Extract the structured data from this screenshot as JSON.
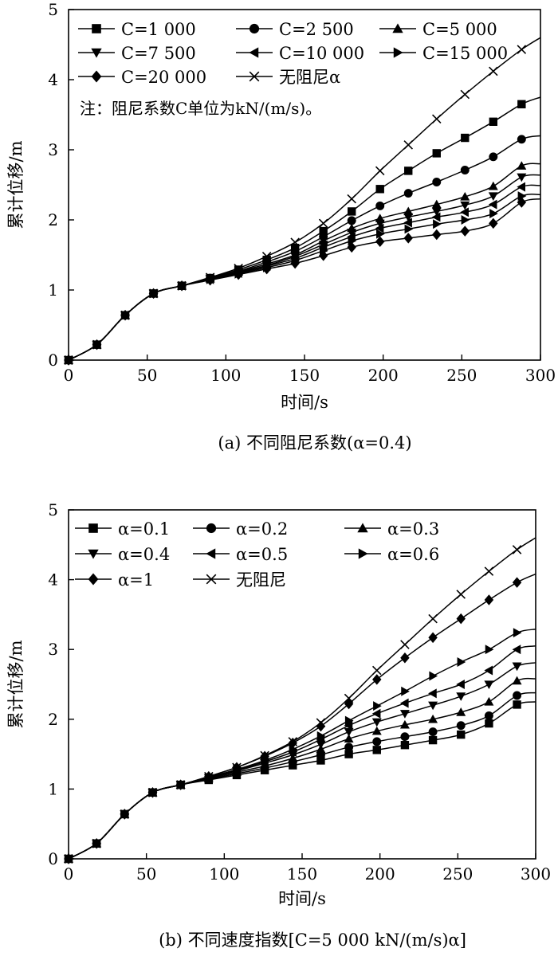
{
  "chart_data": [
    {
      "id": "a",
      "type": "line",
      "caption": "(a) 不同阻尼系数(α=0.4)",
      "xlabel": "时间/s",
      "ylabel": "累计位移/m",
      "xlim": [
        0,
        300
      ],
      "ylim": [
        0,
        5
      ],
      "xticks": [
        "0",
        "50",
        "100",
        "150",
        "200",
        "250",
        "300"
      ],
      "yticks": [
        "0",
        "1",
        "2",
        "3",
        "4",
        "5"
      ],
      "legend_placement": "top-left",
      "note": "注：阻尼系数C单位为kN/(m/s)。",
      "marker_x": [
        0,
        18,
        36,
        54,
        72,
        90,
        108,
        126,
        144,
        162,
        180,
        198,
        216,
        234,
        252,
        270,
        288
      ],
      "series": [
        {
          "name": "C=1 000",
          "marker": "square",
          "values": [
            0,
            0.22,
            0.64,
            0.95,
            1.06,
            1.17,
            1.29,
            1.43,
            1.6,
            1.84,
            2.12,
            2.44,
            2.7,
            2.95,
            3.17,
            3.4,
            3.65
          ],
          "end": 3.75
        },
        {
          "name": "C=2 500",
          "marker": "circle",
          "values": [
            0,
            0.22,
            0.64,
            0.95,
            1.06,
            1.17,
            1.27,
            1.4,
            1.55,
            1.76,
            1.99,
            2.2,
            2.38,
            2.54,
            2.71,
            2.9,
            3.15
          ],
          "end": 3.2
        },
        {
          "name": "C=5 000",
          "marker": "triangle-up",
          "values": [
            0,
            0.22,
            0.64,
            0.95,
            1.06,
            1.16,
            1.26,
            1.37,
            1.5,
            1.7,
            1.88,
            2.02,
            2.12,
            2.22,
            2.33,
            2.48,
            2.77
          ],
          "end": 2.8
        },
        {
          "name": "C=7 500",
          "marker": "triangle-down",
          "values": [
            0,
            0.22,
            0.64,
            0.95,
            1.06,
            1.16,
            1.25,
            1.35,
            1.48,
            1.65,
            1.82,
            1.95,
            2.04,
            2.12,
            2.21,
            2.34,
            2.61
          ],
          "end": 2.64
        },
        {
          "name": "C=10 000",
          "marker": "triangle-left",
          "values": [
            0,
            0.22,
            0.64,
            0.95,
            1.06,
            1.15,
            1.24,
            1.34,
            1.45,
            1.61,
            1.76,
            1.88,
            1.96,
            2.04,
            2.11,
            2.22,
            2.47
          ],
          "end": 2.49
        },
        {
          "name": "C=15 000",
          "marker": "triangle-right",
          "values": [
            0,
            0.22,
            0.64,
            0.95,
            1.06,
            1.15,
            1.23,
            1.32,
            1.42,
            1.56,
            1.7,
            1.8,
            1.87,
            1.94,
            2.0,
            2.09,
            2.34
          ],
          "end": 2.36
        },
        {
          "name": "C=20 000",
          "marker": "diamond",
          "values": [
            0,
            0.22,
            0.64,
            0.95,
            1.06,
            1.14,
            1.22,
            1.3,
            1.38,
            1.49,
            1.61,
            1.69,
            1.74,
            1.79,
            1.84,
            1.95,
            2.25
          ],
          "end": 2.3
        },
        {
          "name": "无阻尼α",
          "marker": "x",
          "values": [
            0,
            0.22,
            0.64,
            0.95,
            1.06,
            1.18,
            1.31,
            1.48,
            1.68,
            1.95,
            2.3,
            2.7,
            3.07,
            3.44,
            3.79,
            4.12,
            4.43
          ],
          "end": 4.6
        }
      ]
    },
    {
      "id": "b",
      "type": "line",
      "caption": "(b) 不同速度指数[C=5 000 kN/(m/s)α]",
      "xlabel": "时间/s",
      "ylabel": "累计位移/m",
      "xlim": [
        0,
        300
      ],
      "ylim": [
        0,
        5
      ],
      "xticks": [
        "0",
        "50",
        "100",
        "150",
        "200",
        "250",
        "300"
      ],
      "yticks": [
        "0",
        "1",
        "2",
        "3",
        "4",
        "5"
      ],
      "legend_placement": "top-left",
      "marker_x": [
        0,
        18,
        36,
        54,
        72,
        90,
        108,
        126,
        144,
        162,
        180,
        198,
        216,
        234,
        252,
        270,
        288
      ],
      "series": [
        {
          "name": "α=0.1",
          "marker": "square",
          "values": [
            0,
            0.22,
            0.64,
            0.95,
            1.06,
            1.13,
            1.2,
            1.27,
            1.34,
            1.41,
            1.5,
            1.56,
            1.63,
            1.7,
            1.78,
            1.94,
            2.21
          ],
          "end": 2.25
        },
        {
          "name": "α=0.2",
          "marker": "circle",
          "values": [
            0,
            0.22,
            0.64,
            0.95,
            1.06,
            1.14,
            1.22,
            1.3,
            1.39,
            1.49,
            1.6,
            1.68,
            1.75,
            1.82,
            1.91,
            2.05,
            2.34
          ],
          "end": 2.38
        },
        {
          "name": "α=0.3",
          "marker": "triangle-up",
          "values": [
            0,
            0.22,
            0.64,
            0.95,
            1.06,
            1.15,
            1.24,
            1.33,
            1.44,
            1.57,
            1.72,
            1.83,
            1.92,
            2.0,
            2.1,
            2.25,
            2.55
          ],
          "end": 2.58
        },
        {
          "name": "α=0.4",
          "marker": "triangle-down",
          "values": [
            0,
            0.22,
            0.64,
            0.95,
            1.06,
            1.16,
            1.26,
            1.37,
            1.49,
            1.64,
            1.82,
            1.96,
            2.08,
            2.2,
            2.33,
            2.5,
            2.76
          ],
          "end": 2.81
        },
        {
          "name": "α=0.5",
          "marker": "triangle-left",
          "values": [
            0,
            0.22,
            0.64,
            0.95,
            1.06,
            1.16,
            1.27,
            1.39,
            1.53,
            1.71,
            1.91,
            2.08,
            2.23,
            2.37,
            2.5,
            2.7,
            3.0
          ],
          "end": 3.05
        },
        {
          "name": "α=0.6",
          "marker": "triangle-right",
          "values": [
            0,
            0.22,
            0.64,
            0.95,
            1.06,
            1.17,
            1.28,
            1.41,
            1.57,
            1.76,
            1.98,
            2.19,
            2.4,
            2.62,
            2.82,
            3.0,
            3.24
          ],
          "end": 3.29
        },
        {
          "name": "α=1",
          "marker": "diamond",
          "values": [
            0,
            0.22,
            0.64,
            0.95,
            1.06,
            1.18,
            1.31,
            1.47,
            1.66,
            1.9,
            2.22,
            2.57,
            2.88,
            3.17,
            3.44,
            3.71,
            3.96
          ],
          "end": 4.08
        },
        {
          "name": "无阻尼",
          "marker": "x",
          "values": [
            0,
            0.22,
            0.64,
            0.95,
            1.06,
            1.18,
            1.31,
            1.48,
            1.68,
            1.95,
            2.3,
            2.7,
            3.07,
            3.44,
            3.79,
            4.12,
            4.43
          ],
          "end": 4.6
        }
      ]
    }
  ]
}
